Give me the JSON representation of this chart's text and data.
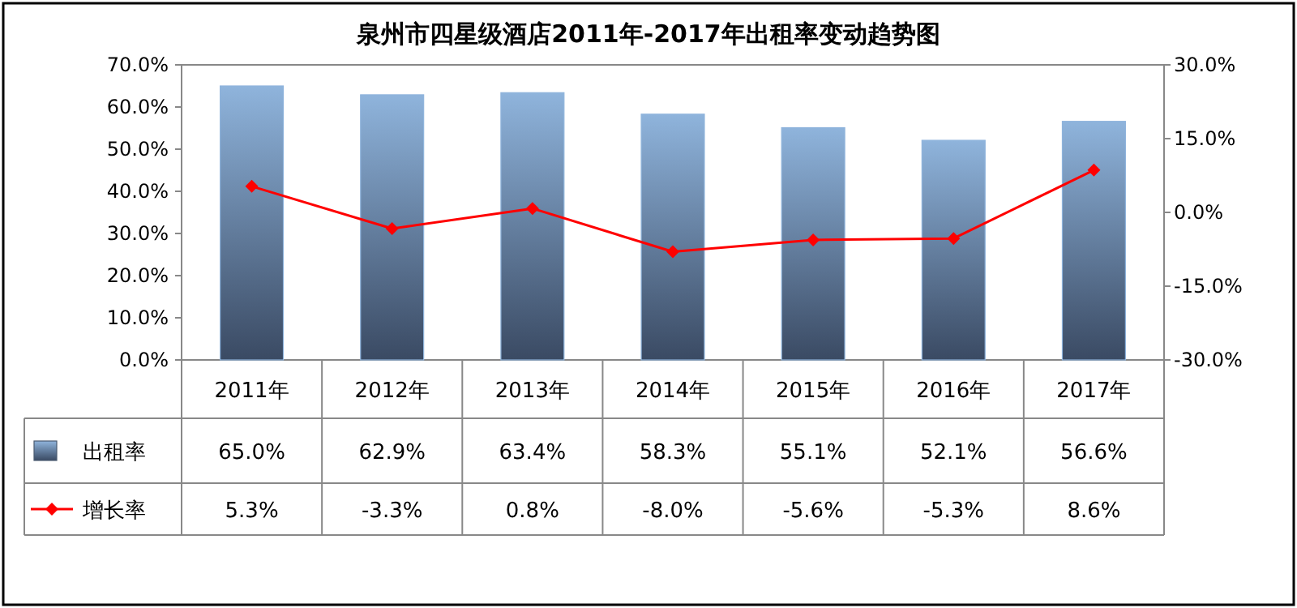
{
  "chart_data": {
    "type": "bar",
    "title": "泉州市四星级酒店2011年-2017年出租率变动趋势图",
    "categories": [
      "2011年",
      "2012年",
      "2013年",
      "2014年",
      "2015年",
      "2016年",
      "2017年"
    ],
    "series": [
      {
        "name": "出租率",
        "color": "#8fb4dc",
        "values": [
          65.0,
          62.9,
          63.4,
          58.3,
          55.1,
          52.1,
          56.6
        ],
        "value_labels": [
          "65.0%",
          "62.9%",
          "63.4%",
          "58.3%",
          "55.1%",
          "52.1%",
          "56.6%"
        ]
      },
      {
        "name": "增长率",
        "type": "line",
        "axis": "y2",
        "color": "#ff0000",
        "marker": "diamond",
        "values": [
          5.3,
          -3.3,
          0.8,
          -8.0,
          -5.6,
          -5.3,
          8.6
        ],
        "value_labels": [
          "5.3%",
          "-3.3%",
          "0.8%",
          "-8.0%",
          "-5.6%",
          "-5.3%",
          "8.6%"
        ]
      }
    ],
    "ylim": [
      0,
      70
    ],
    "yticks": [
      {
        "value": 0,
        "label": "0.0%"
      },
      {
        "value": 10,
        "label": "10.0%"
      },
      {
        "value": 20,
        "label": "20.0%"
      },
      {
        "value": 30,
        "label": "30.0%"
      },
      {
        "value": 40,
        "label": "40.0%"
      },
      {
        "value": 50,
        "label": "50.0%"
      },
      {
        "value": 60,
        "label": "60.0%"
      },
      {
        "value": 70,
        "label": "70.0%"
      }
    ],
    "y2lim": [
      -30,
      30
    ],
    "y2ticks": [
      {
        "value": -30,
        "label": "-30.0%"
      },
      {
        "value": -15,
        "label": "-15.0%"
      },
      {
        "value": 0,
        "label": "0.0%"
      },
      {
        "value": 15,
        "label": "15.0%"
      },
      {
        "value": 30,
        "label": "30.0%"
      }
    ],
    "legend": "bottom"
  }
}
